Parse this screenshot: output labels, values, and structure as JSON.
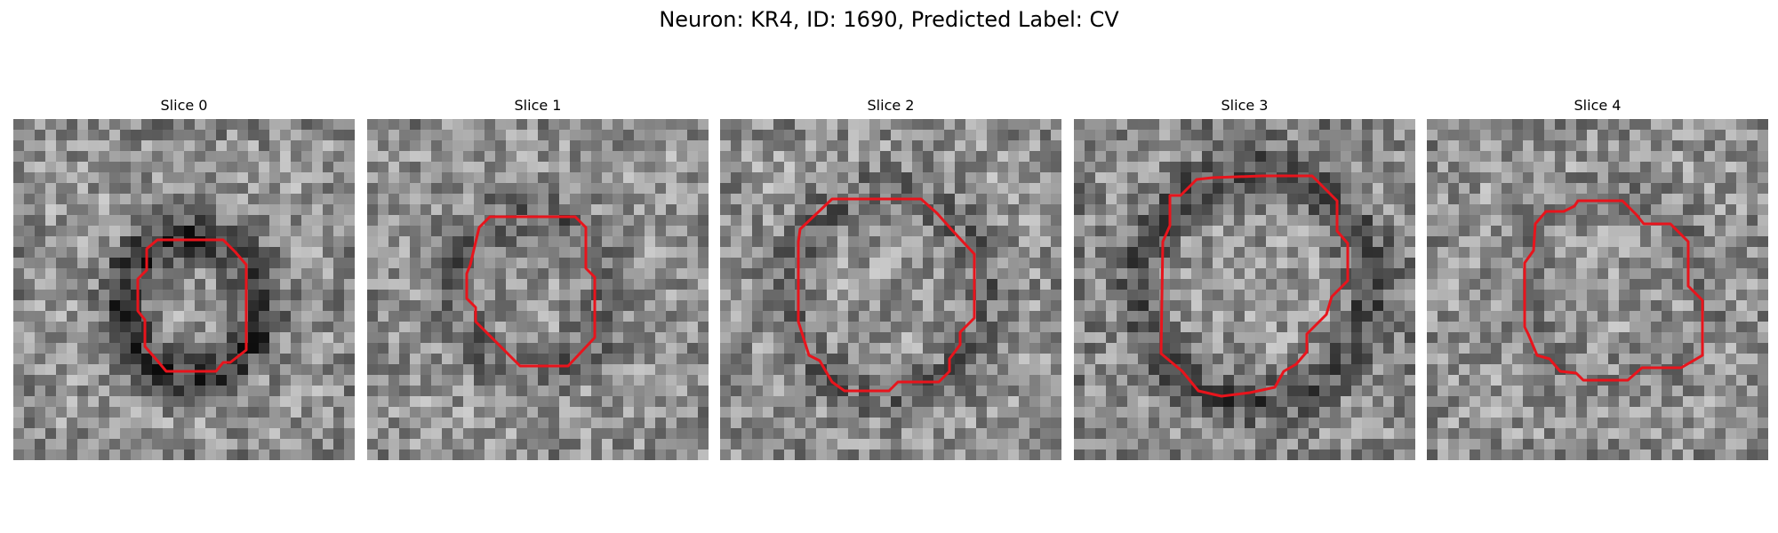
{
  "figure": {
    "title": "Neuron: KR4, ID: 1690, Predicted Label: CV"
  },
  "panels": [
    {
      "label": "Slice 0",
      "seed": 101,
      "dark_ring": 0.85,
      "vignette": 0.15
    },
    {
      "label": "Slice 1",
      "seed": 211,
      "dark_ring": 0.45,
      "vignette": 0.1
    },
    {
      "label": "Slice 2",
      "seed": 331,
      "dark_ring": 0.4,
      "vignette": 0.1
    },
    {
      "label": "Slice 3",
      "seed": 457,
      "dark_ring": 0.65,
      "vignette": 0.2
    },
    {
      "label": "Slice 4",
      "seed": 587,
      "dark_ring": 0.2,
      "vignette": 0.1
    }
  ],
  "grid": {
    "pixels": 32
  },
  "colors": {
    "contour": "#e8141c",
    "image_colormap": "grayscale"
  }
}
